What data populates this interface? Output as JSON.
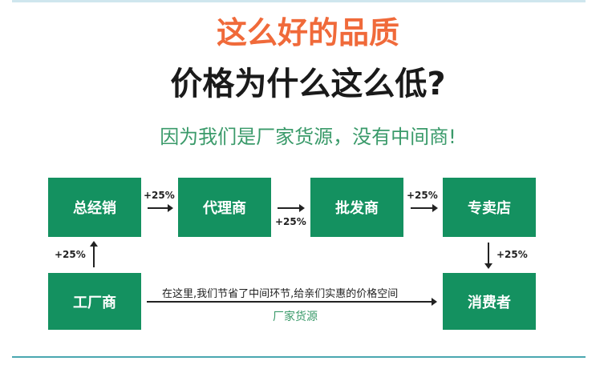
{
  "headline": "这么好的品质",
  "question": "价格为什么这么低?",
  "answer": "因为我们是厂家货源，没有中间商!",
  "nodes": {
    "distributor": "总经销",
    "agent": "代理商",
    "wholesaler": "批发商",
    "store": "专卖店",
    "factory": "工厂商",
    "consumer": "消费者"
  },
  "markups": {
    "factory_to_distributor": "+25%",
    "distributor_to_agent": "+25%",
    "agent_to_wholesaler": "+25%",
    "wholesaler_to_store": "+25%",
    "store_to_consumer": "+25%"
  },
  "direct_path": {
    "note": "在这里,我们节省了中间环节,给亲们实惠的价格空间",
    "label": "厂家货源"
  },
  "colors": {
    "accent_orange": "#f06a3a",
    "box_green": "#149160",
    "text_green": "#3a9a6a"
  }
}
